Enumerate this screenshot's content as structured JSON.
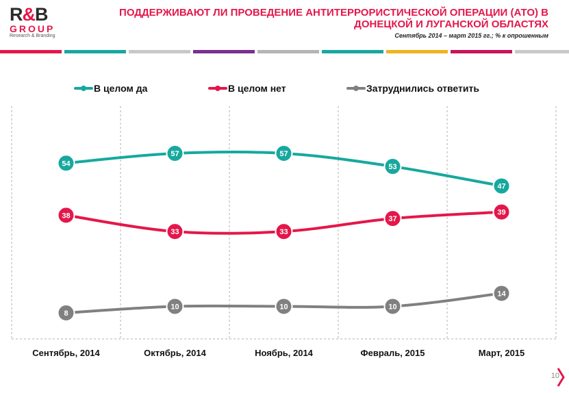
{
  "logo": {
    "main_left": "R",
    "main_amp": "&",
    "main_right": "B",
    "group": "GROUP",
    "tagline": "Research & Branding"
  },
  "header": {
    "title": "ПОДДЕРЖИВАЮТ ЛИ ПРОВЕДЕНИЕ АНТИТЕРРОРИСТИЧЕСКОЙ ОПЕРАЦИИ (АТО) В ДОНЕЦКОЙ И ЛУГАНСКОЙ ОБЛАСТЯХ",
    "subtitle": "Сентябрь 2014 – март 2015 гг.; % к опрошенным"
  },
  "page_number": "10",
  "colors": {
    "accent": "#e4174a",
    "teal": "#17a89e",
    "red": "#e4174a",
    "gray": "#808080"
  },
  "chart_data": {
    "type": "line",
    "categories": [
      "Сентябрь, 2014",
      "Октябрь, 2014",
      "Ноябрь, 2014",
      "Февраль, 2015",
      "Март, 2015"
    ],
    "series": [
      {
        "name": "В целом да",
        "values": [
          54,
          57,
          57,
          53,
          47
        ],
        "color": "#17a89e"
      },
      {
        "name": "В целом нет",
        "values": [
          38,
          33,
          33,
          37,
          39
        ],
        "color": "#e4174a"
      },
      {
        "name": "Затруднились ответить",
        "values": [
          8,
          10,
          10,
          10,
          14
        ],
        "color": "#808080"
      }
    ],
    "ylim": [
      0,
      65
    ],
    "legend_position": "top",
    "grid": "vertical-dashed"
  }
}
